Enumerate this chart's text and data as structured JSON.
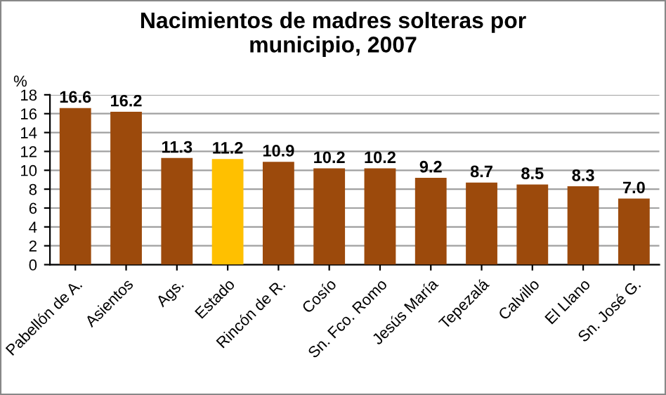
{
  "chart_data": {
    "type": "bar",
    "title": "Nacimientos de madres solteras por\nmunicipio, 2007",
    "ylabel": "%",
    "categories": [
      "Pabellón de A.",
      "Asientos",
      "Ags.",
      "Estado",
      "Rincón de R.",
      "Cosío",
      "Sn. Fco. Romo",
      "Jesús María",
      "Tepezalá",
      "Calvillo",
      "El Llano",
      "Sn. José G."
    ],
    "values": [
      16.6,
      16.2,
      11.3,
      11.2,
      10.9,
      10.2,
      10.2,
      9.2,
      8.7,
      8.5,
      8.3,
      7.0
    ],
    "value_labels": [
      "16.6",
      "16.2",
      "11.3",
      "11.2",
      "10.9",
      "10.2",
      "10.2",
      "9.2",
      "8.7",
      "8.5",
      "8.3",
      "7.0"
    ],
    "colors": [
      "#9c4a0c",
      "#9c4a0c",
      "#9c4a0c",
      "#ffc000",
      "#9c4a0c",
      "#9c4a0c",
      "#9c4a0c",
      "#9c4a0c",
      "#9c4a0c",
      "#9c4a0c",
      "#9c4a0c",
      "#9c4a0c"
    ],
    "ylim": [
      0,
      18
    ],
    "yticks": [
      0,
      2,
      4,
      6,
      8,
      10,
      12,
      14,
      16,
      18
    ],
    "grid": "y",
    "legend": false
  }
}
